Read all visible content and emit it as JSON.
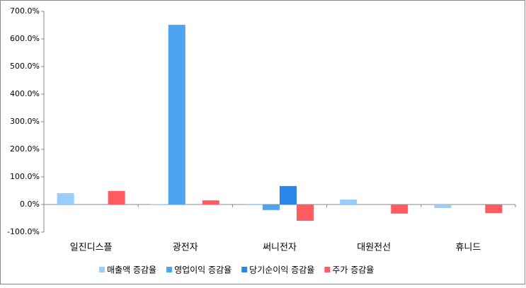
{
  "chart_data": {
    "type": "bar",
    "categories": [
      "일진디스플",
      "광전자",
      "써니전자",
      "대원전선",
      "휴니드"
    ],
    "series": [
      {
        "name": "매출액 증감율",
        "color": "#99ccff",
        "values": [
          41,
          1,
          2,
          18,
          -13
        ]
      },
      {
        "name": "영업이익 증감율",
        "color": "#4da3f0",
        "values": [
          0,
          651,
          -20,
          0,
          0
        ]
      },
      {
        "name": "당기순이익 증감율",
        "color": "#2a86e8",
        "values": [
          0,
          0,
          67,
          0,
          0
        ]
      },
      {
        "name": "주가 증감율",
        "color": "#ff5b61",
        "values": [
          49,
          15,
          -59,
          -33,
          -31
        ]
      }
    ],
    "ylim": [
      -100,
      700
    ],
    "yticks": [
      {
        "value": -100,
        "label": "-100.0%"
      },
      {
        "value": 0,
        "label": "0.0%"
      },
      {
        "value": 100,
        "label": "100.0%"
      },
      {
        "value": 200,
        "label": "200.0%"
      },
      {
        "value": 300,
        "label": "300.0%"
      },
      {
        "value": 400,
        "label": "400.0%"
      },
      {
        "value": 500,
        "label": "500.0%"
      },
      {
        "value": 600,
        "label": "600.0%"
      },
      {
        "value": 700,
        "label": "700.0%"
      }
    ],
    "grid": false,
    "legend": "bottom"
  }
}
